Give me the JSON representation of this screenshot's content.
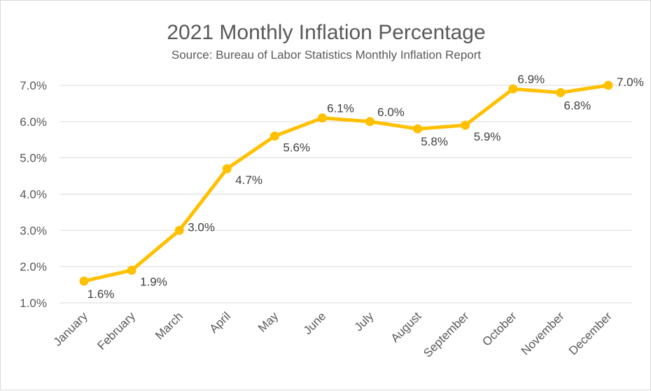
{
  "chart_data": {
    "type": "line",
    "title": "2021 Monthly Inflation Percentage",
    "subtitle": "Source: Bureau of Labor Statistics Monthly Inflation Report",
    "xlabel": "",
    "ylabel": "",
    "categories": [
      "January",
      "February",
      "March",
      "April",
      "May",
      "June",
      "July",
      "August",
      "September",
      "October",
      "November",
      "December"
    ],
    "series": [
      {
        "values": [
          1.6,
          1.9,
          3.0,
          4.7,
          5.6,
          6.1,
          6.0,
          5.8,
          5.9,
          6.9,
          6.8,
          7.0
        ],
        "data_labels": [
          "1.6%",
          "1.9%",
          "3.0%",
          "4.7%",
          "5.6%",
          "6.1%",
          "6.0%",
          "5.8%",
          "5.9%",
          "6.9%",
          "6.8%",
          "7.0%"
        ],
        "color": "#FFC000"
      }
    ],
    "ylim": [
      1.0,
      7.0
    ],
    "yticks": [
      "1.0%",
      "2.0%",
      "3.0%",
      "4.0%",
      "5.0%",
      "6.0%",
      "7.0%"
    ],
    "grid": true,
    "legend": "none"
  }
}
